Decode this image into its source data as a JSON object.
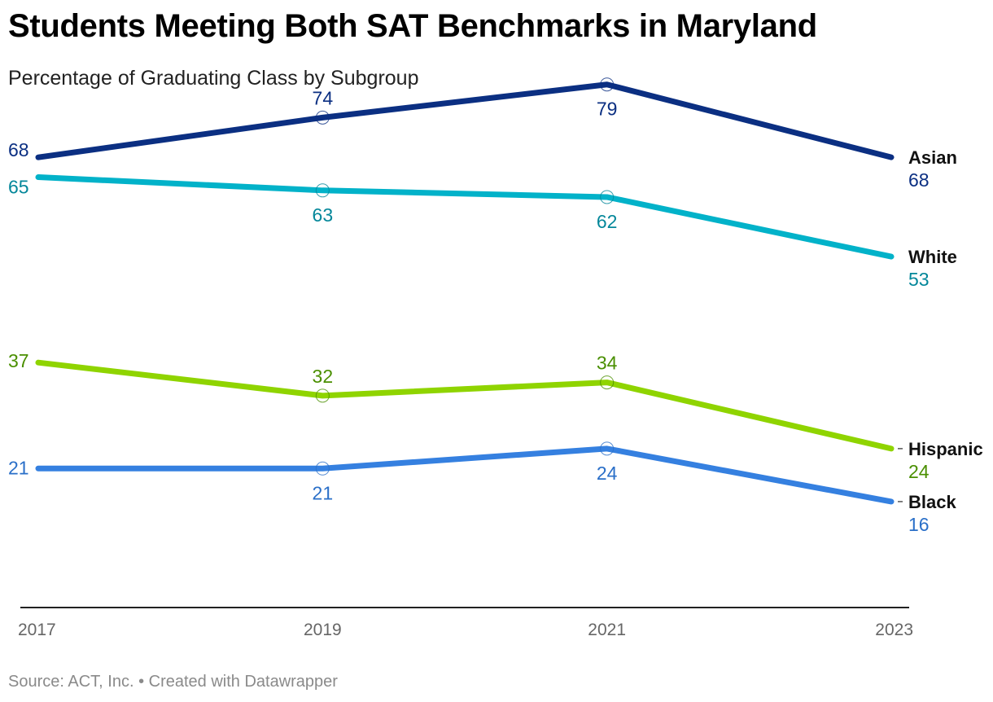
{
  "title": "Students Meeting Both SAT Benchmarks in Maryland",
  "subtitle": "Percentage of Graduating Class by Subgroup",
  "source": "Source: ACT, Inc. • Created with Datawrapper",
  "chart_data": {
    "type": "line",
    "title": "Students Meeting Both SAT Benchmarks in Maryland",
    "subtitle": "Percentage of Graduating Class by Subgroup",
    "xlabel": "",
    "ylabel": "",
    "x": [
      "2017",
      "2019",
      "2021",
      "2023"
    ],
    "ylim": [
      0,
      85
    ],
    "grid": false,
    "legend": "end-of-line labels",
    "series": [
      {
        "name": "Asian",
        "values": [
          68,
          74,
          79,
          68
        ],
        "color": "#0b2f82",
        "label_color": "#0b2f82"
      },
      {
        "name": "White",
        "values": [
          65,
          63,
          62,
          53
        ],
        "color": "#02b2c9",
        "label_color": "#04879a"
      },
      {
        "name": "Hispanic",
        "values": [
          37,
          32,
          34,
          24
        ],
        "color": "#8fd400",
        "label_color": "#4a8f00"
      },
      {
        "name": "Black",
        "values": [
          21,
          21,
          24,
          16
        ],
        "color": "#3580e0",
        "label_color": "#2a6fc8"
      }
    ]
  }
}
